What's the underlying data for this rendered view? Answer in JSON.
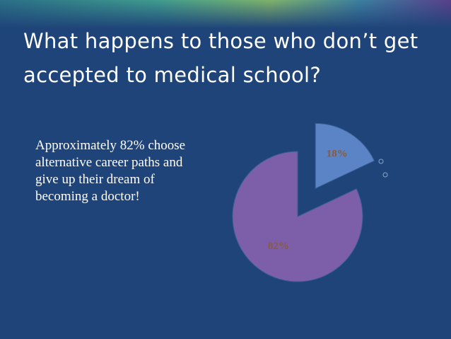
{
  "chart_data": {
    "type": "pie",
    "title": "What happens to those who don’t get accepted to medical school?",
    "annotation": "Approximately 82% choose alternative career paths and give up their dream of becoming a doctor!",
    "values": [
      18,
      82
    ],
    "value_labels": [
      "18%",
      "82%"
    ],
    "colors": [
      "#5b84c6",
      "#7d5ea8"
    ]
  }
}
